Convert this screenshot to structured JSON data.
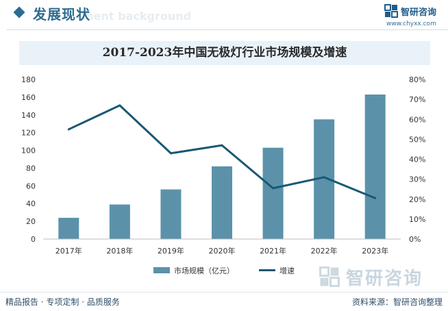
{
  "header": {
    "title": "发展现状",
    "watermark": "ment background",
    "logo_name": "智研咨询",
    "logo_url": "www.chyxx.com"
  },
  "chart_data": {
    "type": "bar",
    "title": "2017-2023年中国无极灯行业市场规模及增速",
    "categories": [
      "2017年",
      "2018年",
      "2019年",
      "2020年",
      "2021年",
      "2022年",
      "2023年"
    ],
    "series": [
      {
        "name": "市场规模（亿元）",
        "type": "bar",
        "axis": "left",
        "values": [
          24,
          39,
          56,
          82,
          103,
          135,
          163
        ]
      },
      {
        "name": "增速",
        "type": "line",
        "axis": "right",
        "values": [
          0.55,
          0.67,
          0.43,
          0.47,
          0.255,
          0.31,
          0.205
        ]
      }
    ],
    "y_left": {
      "min": 0,
      "max": 180,
      "step": 20,
      "ticks": [
        "0",
        "20",
        "40",
        "60",
        "80",
        "100",
        "120",
        "140",
        "160",
        "180"
      ]
    },
    "y_right": {
      "min": 0,
      "max": 0.8,
      "step": 0.1,
      "ticks": [
        "0%",
        "10%",
        "20%",
        "30%",
        "40%",
        "50%",
        "60%",
        "70%",
        "80%"
      ]
    },
    "grid": false,
    "legend_position": "bottom",
    "colors": {
      "bar": "#5b92aa",
      "line": "#1a5873",
      "axis": "#bfbfbf",
      "tick_text": "#333333"
    }
  },
  "watermark": {
    "text": "智研咨询"
  },
  "footer": {
    "left": "精品报告 · 专项定制 · 品质服务",
    "source": "资料来源：智研咨询整理"
  }
}
